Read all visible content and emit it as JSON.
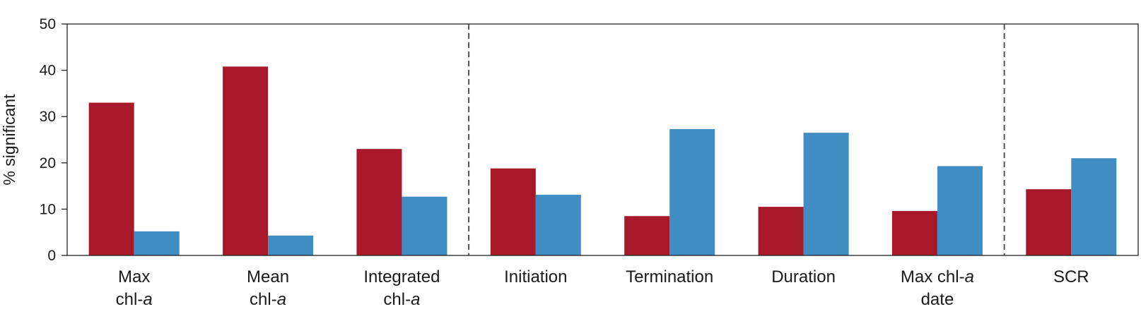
{
  "chart_data": {
    "type": "bar",
    "ylabel": "% significant",
    "xlabel": "",
    "ylim": [
      0,
      50
    ],
    "yticks": [
      0,
      10,
      20,
      30,
      40,
      50
    ],
    "categories": [
      {
        "line1": "Max",
        "line2_prefix": "chl-",
        "line2_italic": "a"
      },
      {
        "line1": "Mean",
        "line2_prefix": "chl-",
        "line2_italic": "a"
      },
      {
        "line1": "Integrated",
        "line2_prefix": "chl-",
        "line2_italic": "a"
      },
      {
        "line1": "Initiation",
        "line2_prefix": "",
        "line2_italic": ""
      },
      {
        "line1": "Termination",
        "line2_prefix": "",
        "line2_italic": ""
      },
      {
        "line1": "Duration",
        "line2_prefix": "",
        "line2_italic": ""
      },
      {
        "line1_prefix": "Max chl-",
        "line1_italic": "a",
        "line2_prefix": "date",
        "line2_italic": ""
      },
      {
        "line1": "SCR",
        "line2_prefix": "",
        "line2_italic": ""
      }
    ],
    "series": [
      {
        "name": "red",
        "color": "#A8182B",
        "values": [
          33,
          40.8,
          23,
          18.8,
          8.5,
          10.5,
          9.6,
          14.3
        ]
      },
      {
        "name": "blue",
        "color": "#3F8DC3",
        "values": [
          5.2,
          4.3,
          12.7,
          13.1,
          27.3,
          26.5,
          19.3,
          21
        ]
      }
    ],
    "group_dividers_after": [
      2,
      6
    ],
    "grid": false
  }
}
